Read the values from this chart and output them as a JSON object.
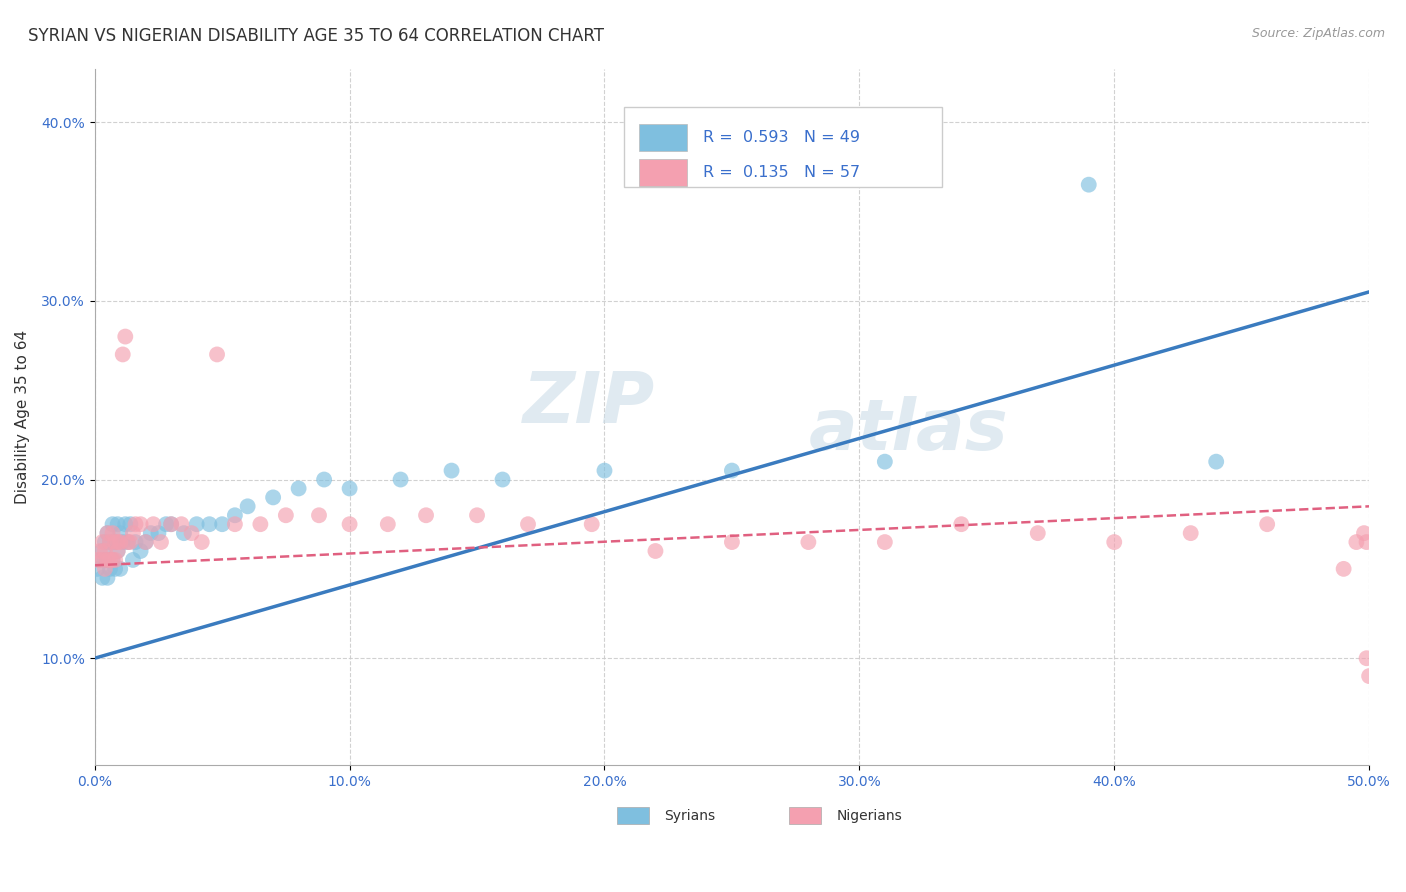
{
  "title": "SYRIAN VS NIGERIAN DISABILITY AGE 35 TO 64 CORRELATION CHART",
  "source": "Source: ZipAtlas.com",
  "ylabel": "Disability Age 35 to 64",
  "xlim": [
    0.0,
    0.5
  ],
  "ylim": [
    0.04,
    0.43
  ],
  "xtick_labels": [
    "0.0%",
    "10.0%",
    "20.0%",
    "30.0%",
    "40.0%",
    "50.0%"
  ],
  "xtick_values": [
    0.0,
    0.1,
    0.2,
    0.3,
    0.4,
    0.5
  ],
  "ytick_labels": [
    "10.0%",
    "20.0%",
    "30.0%",
    "40.0%"
  ],
  "ytick_values": [
    0.1,
    0.2,
    0.3,
    0.4
  ],
  "syrian_color": "#7fbfdf",
  "nigerian_color": "#f4a0b0",
  "syrian_line_color": "#3a7bbf",
  "nigerian_line_color": "#e06080",
  "watermark_line1": "ZIP",
  "watermark_line2": "atlas",
  "legend_syrian_R": "0.593",
  "legend_syrian_N": "49",
  "legend_nigerian_R": "0.135",
  "legend_nigerian_N": "57",
  "syrian_x": [
    0.001,
    0.002,
    0.003,
    0.003,
    0.004,
    0.004,
    0.005,
    0.005,
    0.005,
    0.006,
    0.006,
    0.007,
    0.007,
    0.008,
    0.008,
    0.009,
    0.009,
    0.01,
    0.01,
    0.011,
    0.012,
    0.013,
    0.014,
    0.015,
    0.016,
    0.018,
    0.02,
    0.022,
    0.025,
    0.028,
    0.03,
    0.035,
    0.04,
    0.045,
    0.05,
    0.055,
    0.06,
    0.07,
    0.08,
    0.09,
    0.1,
    0.12,
    0.14,
    0.16,
    0.2,
    0.25,
    0.31,
    0.39,
    0.44
  ],
  "syrian_y": [
    0.15,
    0.155,
    0.145,
    0.16,
    0.165,
    0.155,
    0.155,
    0.17,
    0.145,
    0.15,
    0.165,
    0.155,
    0.175,
    0.15,
    0.165,
    0.16,
    0.175,
    0.15,
    0.17,
    0.165,
    0.175,
    0.165,
    0.175,
    0.155,
    0.165,
    0.16,
    0.165,
    0.17,
    0.17,
    0.175,
    0.175,
    0.17,
    0.175,
    0.175,
    0.175,
    0.18,
    0.185,
    0.19,
    0.195,
    0.2,
    0.195,
    0.2,
    0.205,
    0.2,
    0.205,
    0.205,
    0.21,
    0.365,
    0.21
  ],
  "nigerian_x": [
    0.001,
    0.002,
    0.003,
    0.003,
    0.004,
    0.004,
    0.005,
    0.005,
    0.006,
    0.006,
    0.007,
    0.007,
    0.008,
    0.008,
    0.009,
    0.009,
    0.01,
    0.011,
    0.012,
    0.013,
    0.014,
    0.015,
    0.016,
    0.018,
    0.02,
    0.023,
    0.026,
    0.03,
    0.034,
    0.038,
    0.042,
    0.048,
    0.055,
    0.065,
    0.075,
    0.088,
    0.1,
    0.115,
    0.13,
    0.15,
    0.17,
    0.195,
    0.22,
    0.25,
    0.28,
    0.31,
    0.34,
    0.37,
    0.4,
    0.43,
    0.46,
    0.49,
    0.495,
    0.498,
    0.499,
    0.499,
    0.5
  ],
  "nigerian_y": [
    0.155,
    0.16,
    0.155,
    0.165,
    0.15,
    0.16,
    0.155,
    0.17,
    0.155,
    0.165,
    0.155,
    0.17,
    0.165,
    0.155,
    0.165,
    0.16,
    0.165,
    0.27,
    0.28,
    0.165,
    0.165,
    0.17,
    0.175,
    0.175,
    0.165,
    0.175,
    0.165,
    0.175,
    0.175,
    0.17,
    0.165,
    0.27,
    0.175,
    0.175,
    0.18,
    0.18,
    0.175,
    0.175,
    0.18,
    0.18,
    0.175,
    0.175,
    0.16,
    0.165,
    0.165,
    0.165,
    0.175,
    0.17,
    0.165,
    0.17,
    0.175,
    0.15,
    0.165,
    0.17,
    0.165,
    0.1,
    0.09
  ],
  "background_color": "#ffffff",
  "grid_color": "#cccccc"
}
